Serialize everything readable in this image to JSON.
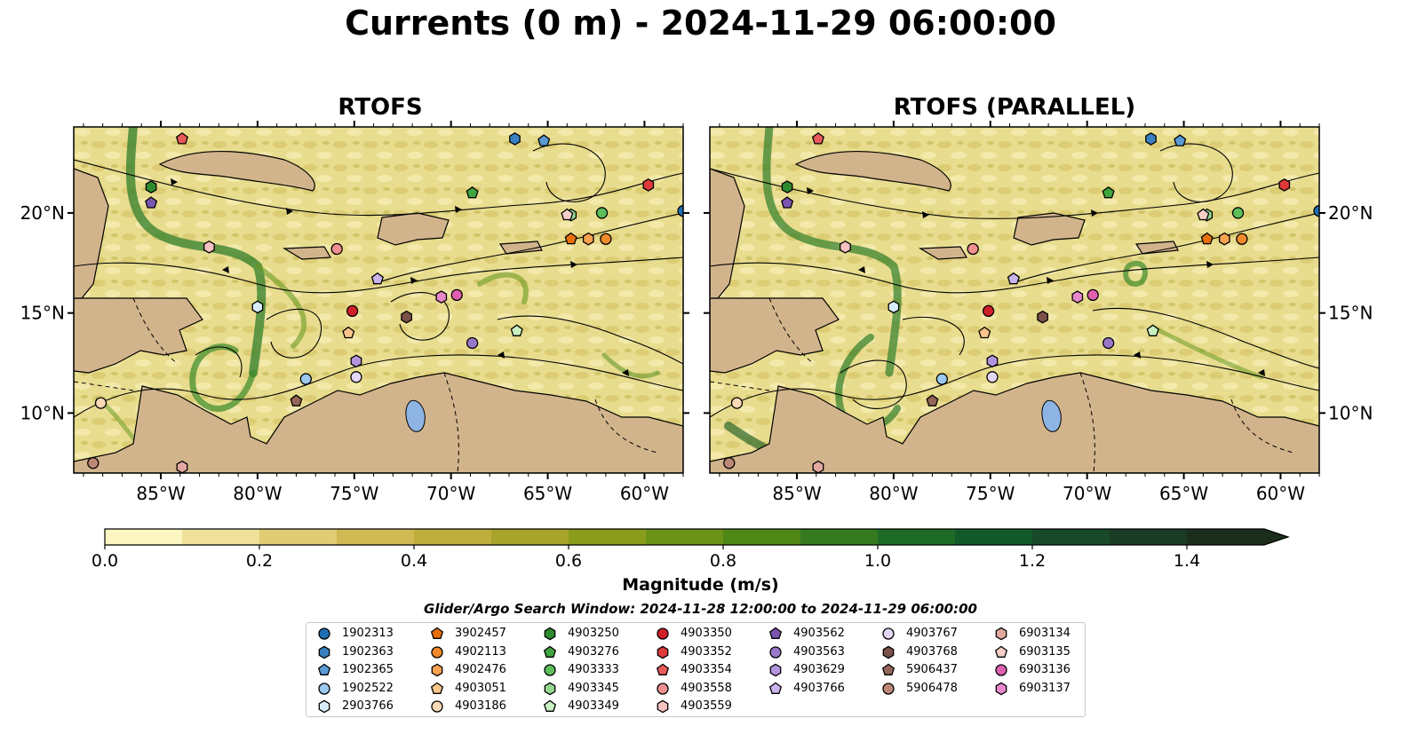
{
  "title": "Currents (0 m) - 2024-11-29 06:00:00",
  "panels": [
    {
      "title": "RTOFS",
      "lat_labels_side": "left"
    },
    {
      "title": "RTOFS (PARALLEL)",
      "lat_labels_side": "right"
    }
  ],
  "map": {
    "lon_range": [
      -89.5,
      -58.0
    ],
    "lat_range": [
      7.0,
      24.3
    ],
    "lon_ticks": [
      -85,
      -80,
      -75,
      -70,
      -65,
      -60
    ],
    "lon_tick_labels": [
      "85°W",
      "80°W",
      "75°W",
      "70°W",
      "65°W",
      "60°W"
    ],
    "lat_ticks": [
      10,
      15,
      20
    ],
    "lat_tick_labels": [
      "10°N",
      "15°N",
      "20°N"
    ],
    "land_color": "#d2b48c",
    "lake_color": "#8eb4e3",
    "ocean_base_color": "#e6d98a",
    "strong_current_color": "#2f7d2a"
  },
  "colorbar": {
    "label": "Magnitude (m/s)",
    "min": 0.0,
    "max": 1.5,
    "extend": "max",
    "tick_values": [
      0.0,
      0.2,
      0.4,
      0.6,
      0.8,
      1.0,
      1.2,
      1.4
    ],
    "tick_labels": [
      "0.0",
      "0.2",
      "0.4",
      "0.6",
      "0.8",
      "1.0",
      "1.2",
      "1.4"
    ],
    "colors": [
      "#fbf6c2",
      "#efe19a",
      "#e1cc74",
      "#d1b954",
      "#bfae3b",
      "#a8a32a",
      "#8a9c1c",
      "#6c9218",
      "#4f8716",
      "#357a1e",
      "#1e6a27",
      "#14592a",
      "#184a2a",
      "#1a3b24",
      "#1b2e1c"
    ]
  },
  "search_window": "Glider/Argo Search Window: 2024-11-28 12:00:00 to 2024-11-29 06:00:00",
  "legend": [
    {
      "id": "1902313",
      "color": "#1f6fb4",
      "marker": "circle"
    },
    {
      "id": "1902363",
      "color": "#3a80c0",
      "marker": "hexagon"
    },
    {
      "id": "1902365",
      "color": "#5a9ad4",
      "marker": "pentagon"
    },
    {
      "id": "1902522",
      "color": "#9cc8ee",
      "marker": "circle"
    },
    {
      "id": "2903766",
      "color": "#d7ecfa",
      "marker": "hexagon"
    },
    {
      "id": "3902457",
      "color": "#e8700a",
      "marker": "pentagon"
    },
    {
      "id": "4902113",
      "color": "#f18a2a",
      "marker": "circle"
    },
    {
      "id": "4902476",
      "color": "#f6a24e",
      "marker": "hexagon"
    },
    {
      "id": "4903051",
      "color": "#f9c58a",
      "marker": "pentagon"
    },
    {
      "id": "4903186",
      "color": "#fbd9b6",
      "marker": "circle"
    },
    {
      "id": "4903250",
      "color": "#2e8b2e",
      "marker": "hexagon"
    },
    {
      "id": "4903276",
      "color": "#3fa53f",
      "marker": "pentagon"
    },
    {
      "id": "4903333",
      "color": "#5cbf5c",
      "marker": "circle"
    },
    {
      "id": "4903345",
      "color": "#95d88e",
      "marker": "hexagon"
    },
    {
      "id": "4903349",
      "color": "#c8f0c0",
      "marker": "pentagon"
    },
    {
      "id": "4903350",
      "color": "#d0202a",
      "marker": "circle"
    },
    {
      "id": "4903352",
      "color": "#de3a3a",
      "marker": "hexagon"
    },
    {
      "id": "4903354",
      "color": "#e85a5a",
      "marker": "pentagon"
    },
    {
      "id": "4903558",
      "color": "#f08f8f",
      "marker": "circle"
    },
    {
      "id": "4903559",
      "color": "#f6c2c0",
      "marker": "hexagon"
    },
    {
      "id": "4903562",
      "color": "#7a55b0",
      "marker": "pentagon"
    },
    {
      "id": "4903563",
      "color": "#9a78c8",
      "marker": "circle"
    },
    {
      "id": "4903629",
      "color": "#b294de",
      "marker": "hexagon"
    },
    {
      "id": "4903766",
      "color": "#c9b4ec",
      "marker": "pentagon"
    },
    {
      "id": "4903767",
      "color": "#e3d6f6",
      "marker": "circle"
    },
    {
      "id": "4903768",
      "color": "#7a5048",
      "marker": "hexagon"
    },
    {
      "id": "5906437",
      "color": "#946658",
      "marker": "pentagon"
    },
    {
      "id": "5906478",
      "color": "#bc8878",
      "marker": "circle"
    },
    {
      "id": "6903134",
      "color": "#e2a8a0",
      "marker": "hexagon"
    },
    {
      "id": "6903135",
      "color": "#f4cfc8",
      "marker": "pentagon"
    },
    {
      "id": "6903136",
      "color": "#e060b0",
      "marker": "circle"
    },
    {
      "id": "6903137",
      "color": "#e888cc",
      "marker": "hexagon"
    }
  ],
  "floats": [
    {
      "id": "1902313",
      "lon": -58.0,
      "lat": 20.1
    },
    {
      "id": "1902363",
      "lon": -66.7,
      "lat": 23.7
    },
    {
      "id": "1902365",
      "lon": -65.2,
      "lat": 23.6
    },
    {
      "id": "1902522",
      "lon": -77.5,
      "lat": 11.7
    },
    {
      "id": "2903766",
      "lon": -80.0,
      "lat": 15.3
    },
    {
      "id": "3902457",
      "lon": -63.8,
      "lat": 18.7
    },
    {
      "id": "4902113",
      "lon": -62.0,
      "lat": 18.7
    },
    {
      "id": "4902476",
      "lon": -62.9,
      "lat": 18.7
    },
    {
      "id": "4903051",
      "lon": -75.3,
      "lat": 14.0
    },
    {
      "id": "4903186",
      "lon": -88.1,
      "lat": 10.5
    },
    {
      "id": "4903250",
      "lon": -85.5,
      "lat": 21.3
    },
    {
      "id": "4903276",
      "lon": -68.9,
      "lat": 21.0
    },
    {
      "id": "4903333",
      "lon": -62.2,
      "lat": 20.0
    },
    {
      "id": "4903345",
      "lon": -63.8,
      "lat": 19.9
    },
    {
      "id": "4903349",
      "lon": -66.6,
      "lat": 14.1
    },
    {
      "id": "4903350",
      "lon": -75.1,
      "lat": 15.1
    },
    {
      "id": "4903352",
      "lon": -59.8,
      "lat": 21.4
    },
    {
      "id": "4903354",
      "lon": -83.9,
      "lat": 23.7
    },
    {
      "id": "4903558",
      "lon": -75.9,
      "lat": 18.2
    },
    {
      "id": "4903559",
      "lon": -82.5,
      "lat": 18.3
    },
    {
      "id": "4903562",
      "lon": -85.5,
      "lat": 20.5
    },
    {
      "id": "4903563",
      "lon": -68.9,
      "lat": 13.5
    },
    {
      "id": "4903629",
      "lon": -74.9,
      "lat": 12.6
    },
    {
      "id": "4903766",
      "lon": -73.8,
      "lat": 16.7
    },
    {
      "id": "4903767",
      "lon": -74.9,
      "lat": 11.8
    },
    {
      "id": "4903768",
      "lon": -72.3,
      "lat": 14.8
    },
    {
      "id": "5906437",
      "lon": -78.0,
      "lat": 10.6
    },
    {
      "id": "5906478",
      "lon": -88.5,
      "lat": 7.5
    },
    {
      "id": "6903134",
      "lon": -83.9,
      "lat": 7.3
    },
    {
      "id": "6903135",
      "lon": -64.0,
      "lat": 19.9
    },
    {
      "id": "6903136",
      "lon": -69.7,
      "lat": 15.9
    },
    {
      "id": "6903137",
      "lon": -70.5,
      "lat": 15.8
    }
  ]
}
